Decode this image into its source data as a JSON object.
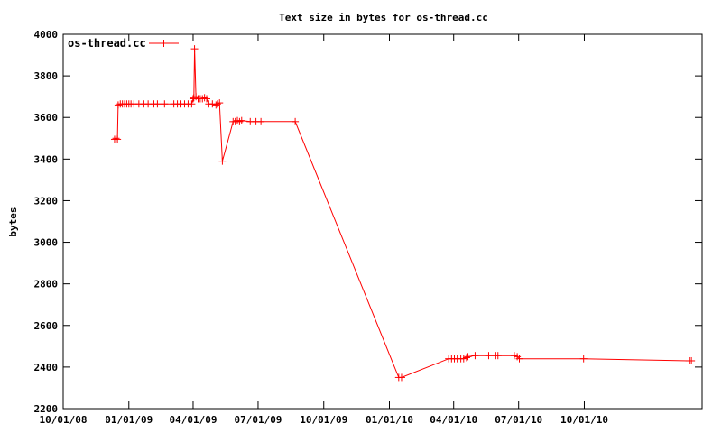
{
  "chart_data": {
    "type": "line",
    "title": "Text size in bytes for os-thread.cc",
    "xlabel": "",
    "ylabel": "bytes",
    "ylim": [
      2200,
      4000
    ],
    "xlim": [
      "2008-10-01",
      "2011-03-15"
    ],
    "yticks": [
      2200,
      2400,
      2600,
      2800,
      3000,
      3200,
      3400,
      3600,
      3800,
      4000
    ],
    "xticks": [
      {
        "date": "2008-10-01",
        "label": "10/01/08"
      },
      {
        "date": "2009-01-01",
        "label": "01/01/09"
      },
      {
        "date": "2009-04-01",
        "label": "04/01/09"
      },
      {
        "date": "2009-07-01",
        "label": "07/01/09"
      },
      {
        "date": "2009-10-01",
        "label": "10/01/09"
      },
      {
        "date": "2010-01-01",
        "label": "01/01/10"
      },
      {
        "date": "2010-04-01",
        "label": "04/01/10"
      },
      {
        "date": "2010-07-01",
        "label": "07/01/10"
      },
      {
        "date": "2010-10-01",
        "label": "10/01/10"
      }
    ],
    "grid": false,
    "legend_position": "top-left",
    "color": "#ff0000",
    "series": [
      {
        "name": "os-thread.cc",
        "points": [
          [
            "2008-12-12",
            3495
          ],
          [
            "2008-12-14",
            3500
          ],
          [
            "2008-12-16",
            3495
          ],
          [
            "2008-12-17",
            3660
          ],
          [
            "2008-12-20",
            3665
          ],
          [
            "2008-12-23",
            3665
          ],
          [
            "2008-12-26",
            3665
          ],
          [
            "2008-12-29",
            3665
          ],
          [
            "2009-01-01",
            3665
          ],
          [
            "2009-01-04",
            3665
          ],
          [
            "2009-01-08",
            3665
          ],
          [
            "2009-01-15",
            3665
          ],
          [
            "2009-01-22",
            3665
          ],
          [
            "2009-01-28",
            3665
          ],
          [
            "2009-02-05",
            3665
          ],
          [
            "2009-02-10",
            3665
          ],
          [
            "2009-02-20",
            3665
          ],
          [
            "2009-03-05",
            3665
          ],
          [
            "2009-03-10",
            3665
          ],
          [
            "2009-03-15",
            3665
          ],
          [
            "2009-03-20",
            3665
          ],
          [
            "2009-03-25",
            3665
          ],
          [
            "2009-03-30",
            3665
          ],
          [
            "2009-04-01",
            3690
          ],
          [
            "2009-04-02",
            3695
          ],
          [
            "2009-04-03",
            3930
          ],
          [
            "2009-04-05",
            3700
          ],
          [
            "2009-04-08",
            3690
          ],
          [
            "2009-04-11",
            3690
          ],
          [
            "2009-04-14",
            3690
          ],
          [
            "2009-04-17",
            3695
          ],
          [
            "2009-04-20",
            3690
          ],
          [
            "2009-04-23",
            3665
          ],
          [
            "2009-04-28",
            3665
          ],
          [
            "2009-05-03",
            3660
          ],
          [
            "2009-05-05",
            3665
          ],
          [
            "2009-05-08",
            3670
          ],
          [
            "2009-05-12",
            3390
          ],
          [
            "2009-05-27",
            3580
          ],
          [
            "2009-05-30",
            3580
          ],
          [
            "2009-06-02",
            3585
          ],
          [
            "2009-06-05",
            3580
          ],
          [
            "2009-06-08",
            3585
          ],
          [
            "2009-06-20",
            3580
          ],
          [
            "2009-06-28",
            3580
          ],
          [
            "2009-07-05",
            3580
          ],
          [
            "2009-08-22",
            3580
          ],
          [
            "2010-01-14",
            2350
          ],
          [
            "2010-01-18",
            2350
          ],
          [
            "2010-03-25",
            2440
          ],
          [
            "2010-03-29",
            2440
          ],
          [
            "2010-04-02",
            2440
          ],
          [
            "2010-04-06",
            2440
          ],
          [
            "2010-04-11",
            2440
          ],
          [
            "2010-04-15",
            2440
          ],
          [
            "2010-04-19",
            2445
          ],
          [
            "2010-04-21",
            2450
          ],
          [
            "2010-05-01",
            2455
          ],
          [
            "2010-05-20",
            2455
          ],
          [
            "2010-05-30",
            2455
          ],
          [
            "2010-06-02",
            2455
          ],
          [
            "2010-06-25",
            2455
          ],
          [
            "2010-06-29",
            2450
          ],
          [
            "2010-07-02",
            2440
          ],
          [
            "2010-09-30",
            2440
          ],
          [
            "2011-02-25",
            2430
          ],
          [
            "2011-02-28",
            2430
          ]
        ]
      }
    ]
  }
}
